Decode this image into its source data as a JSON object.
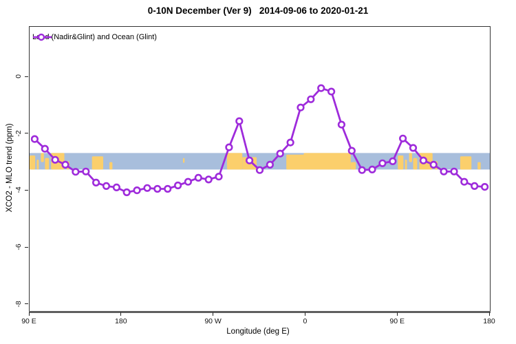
{
  "title": "0-10N December (Ver 9)   2014-09-06 to 2020-01-21",
  "legend": {
    "label": "Land (Nadir&Glint) and Ocean (Glint)"
  },
  "axes": {
    "xlabel": "Longitude (deg E)",
    "ylabel": "XCO2 - MLO trend (ppm)",
    "x_ticks": [
      {
        "deg": 90,
        "label": "90 E"
      },
      {
        "deg": 180,
        "label": "180"
      },
      {
        "deg": 270,
        "label": "90 W"
      },
      {
        "deg": 360,
        "label": "0"
      },
      {
        "deg": 450,
        "label": "90 E"
      },
      {
        "deg": 540,
        "label": "180"
      }
    ],
    "y_ticks": [
      {
        "value": 0,
        "label": "0"
      },
      {
        "value": -2,
        "label": "-2"
      },
      {
        "value": -4,
        "label": "-4"
      },
      {
        "value": -6,
        "label": "-6"
      },
      {
        "value": -8,
        "label": "-8"
      }
    ]
  },
  "chart_data": {
    "type": "line",
    "title": "0-10N December (Ver 9)   2014-09-06 to 2020-01-21",
    "xlabel": "Longitude (deg E)",
    "ylabel": "XCO2 - MLO trend (ppm)",
    "xlim_deg": [
      90,
      540
    ],
    "ylim": [
      -8,
      0
    ],
    "legend_position": "top-left",
    "grid": false,
    "series": [
      {
        "name": "Land (Nadir&Glint) and Ocean (Glint)",
        "x_deg": [
          95,
          105,
          115,
          125,
          135,
          145,
          155,
          165,
          175,
          185,
          195,
          205,
          215,
          225,
          235,
          245,
          255,
          265,
          275,
          285,
          295,
          305,
          315,
          325,
          335,
          345,
          355,
          365,
          375,
          385,
          395,
          405,
          415,
          425,
          435,
          445,
          455,
          465,
          475,
          485,
          495,
          505,
          515,
          525,
          535
        ],
        "y_ppm": [
          -2.18,
          -2.52,
          -2.91,
          -3.08,
          -3.33,
          -3.32,
          -3.71,
          -3.83,
          -3.88,
          -4.05,
          -3.98,
          -3.9,
          -3.93,
          -3.93,
          -3.81,
          -3.68,
          -3.54,
          -3.6,
          -3.5,
          -2.47,
          -1.55,
          -2.93,
          -3.27,
          -3.08,
          -2.69,
          -2.3,
          -1.07,
          -0.78,
          -0.39,
          -0.51,
          -1.67,
          -2.59,
          -3.27,
          -3.25,
          -3.03,
          -2.96,
          -2.16,
          -2.49,
          -2.93,
          -3.08,
          -3.32,
          -3.32,
          -3.68,
          -3.83,
          -3.86
        ]
      }
    ],
    "colors": {
      "line": "#9E2BDB",
      "marker_fill": "#FFFFFF",
      "axis_baseline": "#5F5F5F",
      "box_border": "#333333"
    },
    "map_band": {
      "description_visible": "land/ocean strip across plot",
      "y_top_ppm": -2.67,
      "y_bottom_ppm": -3.25,
      "ocean_color": "#A8BEDC",
      "land_color": "#FBCF6C",
      "land_patches_deg": [
        {
          "from": 90,
          "to": 95.5,
          "t": 0.15,
          "h": 0.85
        },
        {
          "from": 97,
          "to": 99,
          "t": 0.4,
          "h": 0.6
        },
        {
          "from": 101,
          "to": 104,
          "t": 0.0,
          "h": 0.55
        },
        {
          "from": 105,
          "to": 109,
          "t": 0.3,
          "h": 0.7
        },
        {
          "from": 111,
          "to": 124,
          "t": 0.0,
          "h": 1.0
        },
        {
          "from": 126,
          "to": 129,
          "t": 0.5,
          "h": 0.5
        },
        {
          "from": 151,
          "to": 162,
          "t": 0.2,
          "h": 0.8
        },
        {
          "from": 168,
          "to": 171,
          "t": 0.55,
          "h": 0.45
        },
        {
          "from": 240,
          "to": 241.5,
          "t": 0.3,
          "h": 0.3
        },
        {
          "from": 283,
          "to": 298,
          "t": 0.0,
          "h": 1.0
        },
        {
          "from": 298,
          "to": 312,
          "t": 0.25,
          "h": 0.75
        },
        {
          "from": 341,
          "to": 360,
          "t": 0.1,
          "h": 0.9
        },
        {
          "from": 358,
          "to": 404,
          "t": 0.0,
          "h": 1.0
        },
        {
          "from": 404,
          "to": 409,
          "t": 0.55,
          "h": 0.45
        },
        {
          "from": 450,
          "to": 455.5,
          "t": 0.15,
          "h": 0.85
        },
        {
          "from": 457,
          "to": 459,
          "t": 0.4,
          "h": 0.6
        },
        {
          "from": 461,
          "to": 464,
          "t": 0.0,
          "h": 0.55
        },
        {
          "from": 465,
          "to": 469,
          "t": 0.3,
          "h": 0.7
        },
        {
          "from": 471,
          "to": 484,
          "t": 0.0,
          "h": 1.0
        },
        {
          "from": 486,
          "to": 489,
          "t": 0.5,
          "h": 0.5
        },
        {
          "from": 511,
          "to": 522,
          "t": 0.2,
          "h": 0.8
        },
        {
          "from": 528,
          "to": 531,
          "t": 0.55,
          "h": 0.45
        }
      ]
    }
  }
}
